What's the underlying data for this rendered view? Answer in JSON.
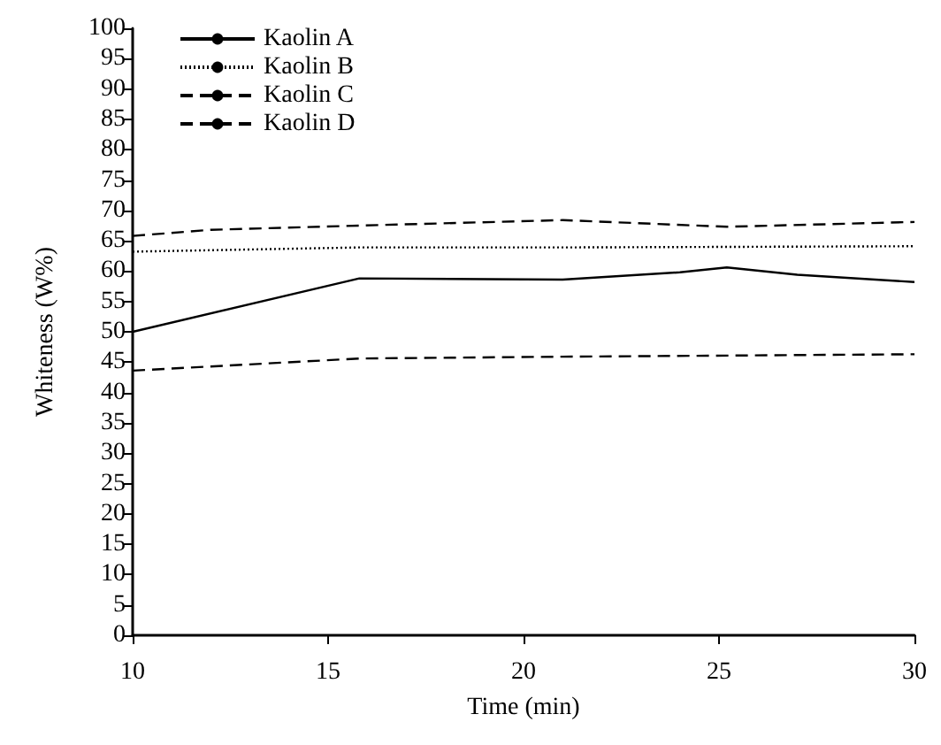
{
  "chart_data": {
    "type": "line",
    "xlabel": "Time (min)",
    "ylabel": "Whiteness (W%)",
    "xlim": [
      10,
      30
    ],
    "xticks": [
      10,
      15,
      20,
      25,
      30
    ],
    "ylim": [
      0,
      100
    ],
    "yticks": [
      0,
      5,
      10,
      15,
      20,
      25,
      30,
      35,
      40,
      45,
      50,
      55,
      60,
      65,
      70,
      75,
      80,
      85,
      90,
      95,
      100
    ],
    "legend": "top left",
    "grid": false,
    "marker": "none",
    "series": [
      {
        "name": "Kaolin A",
        "color": "#000000",
        "line_style": "solid",
        "x": [
          10,
          15.8,
          21,
          24,
          25.2,
          27,
          30
        ],
        "values": [
          50,
          58.8,
          58.6,
          59.8,
          60.6,
          59.4,
          58.2
        ]
      },
      {
        "name": "Kaolin B",
        "color": "#000000",
        "line_style": "dotted",
        "x": [
          10,
          15.8,
          21,
          30
        ],
        "values": [
          63.2,
          63.9,
          63.9,
          64.1
        ]
      },
      {
        "name": "Kaolin C",
        "color": "#000000",
        "line_style": "dashed",
        "x": [
          10,
          15.8,
          21,
          30
        ],
        "values": [
          43.6,
          45.6,
          45.9,
          46.3
        ]
      },
      {
        "name": "Kaolin D",
        "color": "#000000",
        "line_style": "dashed",
        "x": [
          10,
          12,
          15.8,
          21,
          25.2,
          30
        ],
        "values": [
          65.8,
          66.8,
          67.5,
          68.4,
          67.3,
          68.1
        ]
      }
    ]
  }
}
